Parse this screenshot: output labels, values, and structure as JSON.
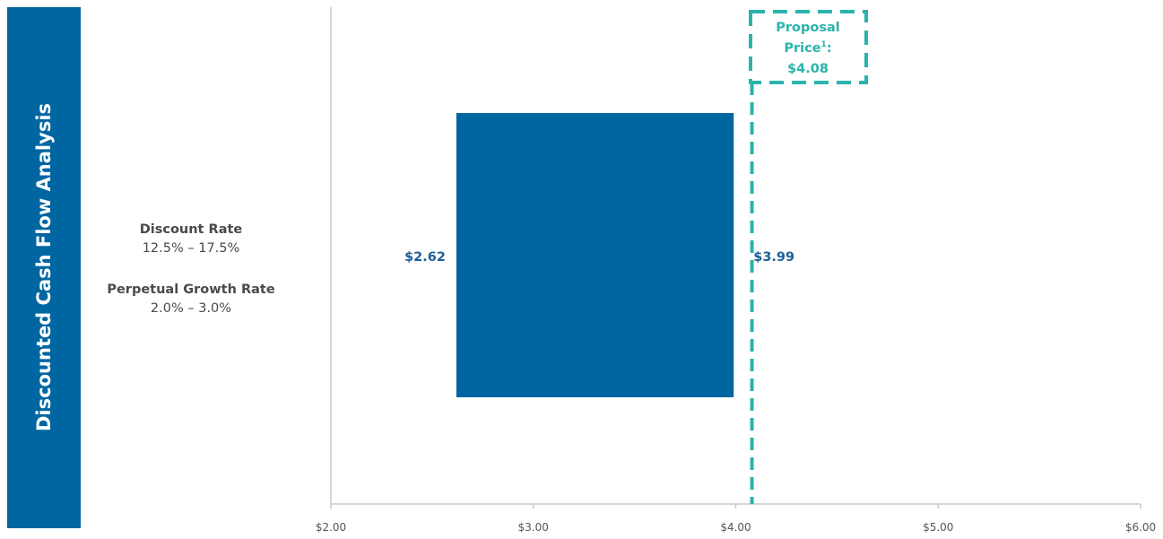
{
  "colors": {
    "side_panel": "#0066a1",
    "bar": "#0066a1",
    "bar_label": "#1f5f96",
    "reference": "#2bb3ad",
    "axis": "#c8c8c8",
    "text": "#4a4a4a"
  },
  "chart_data": {
    "type": "bar",
    "orientation": "horizontal-range",
    "category_title": "Discounted Cash Flow Analysis",
    "parameters": [
      {
        "label": "Discount Rate",
        "value": "12.5% – 17.5%"
      },
      {
        "label": "Perpetual Growth Rate",
        "value": "2.0% – 3.0%"
      }
    ],
    "range": {
      "low": 2.62,
      "high": 3.99,
      "low_label": "$2.62",
      "high_label": "$3.99"
    },
    "reference_line": {
      "value": 4.08,
      "label_line1": "Proposal",
      "label_line2": "Price",
      "footnote": "1",
      "label_suffix": ":",
      "label_line3": "$4.08",
      "style": "dashed"
    },
    "xlim": [
      2.0,
      6.0
    ],
    "x_ticks": [
      {
        "value": 2.0,
        "label": "$2.00"
      },
      {
        "value": 3.0,
        "label": "$3.00"
      },
      {
        "value": 4.0,
        "label": "$4.00"
      },
      {
        "value": 5.0,
        "label": "$5.00"
      },
      {
        "value": 6.0,
        "label": "$6.00"
      }
    ],
    "grid": false,
    "legend": "none"
  }
}
